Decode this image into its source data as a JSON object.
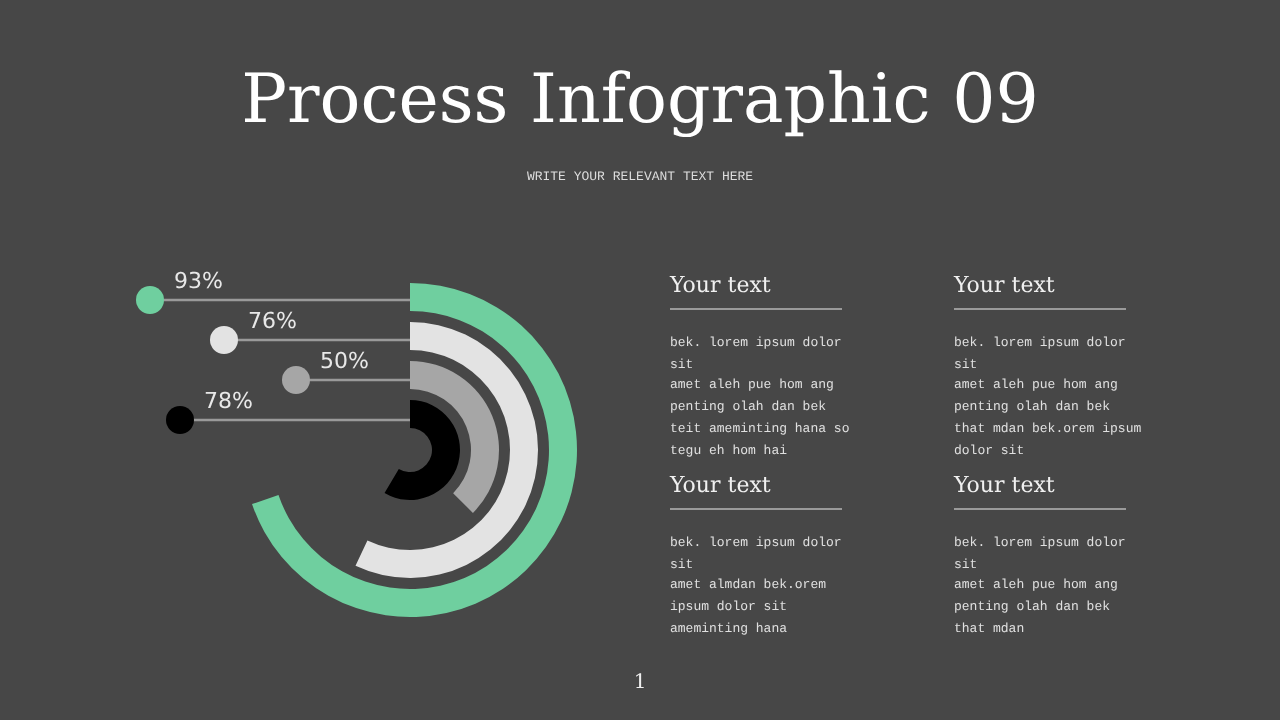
{
  "chart_data": {
    "type": "other",
    "title": "Process Infographic 09",
    "subtitle": "WRITE YOUR RELEVANT TEXT HERE",
    "categories": [
      null,
      null,
      null,
      null
    ],
    "values": [
      93,
      76,
      50,
      78
    ],
    "value_labels": [
      "93%",
      "76%",
      "50%",
      "78%"
    ],
    "colors": [
      "#6fcf9f",
      "#e3e3e3",
      "#a6a6a6",
      "#000000"
    ],
    "annotations": [
      "Your text",
      "bek. lorem ipsum dolor\nsit\namet aleh pue hom ang\npenting olah dan bek\nteit ameminting hana so\ntegu eh hom hai",
      "Your text",
      "bek. lorem ipsum dolor\nsit\namet aleh pue hom ang\npenting olah dan bek\nthat mdan bek.orem ipsum\ndolor sit",
      "Your text",
      "bek. lorem ipsum dolor\nsit\namet almdan bek.orem\nipsum dolor sit\nameminting hana",
      "Your text",
      "bek. lorem ipsum dolor\nsit\namet aleh pue hom ang\npenting olah dan bek\nthat mdan",
      "1"
    ]
  }
}
